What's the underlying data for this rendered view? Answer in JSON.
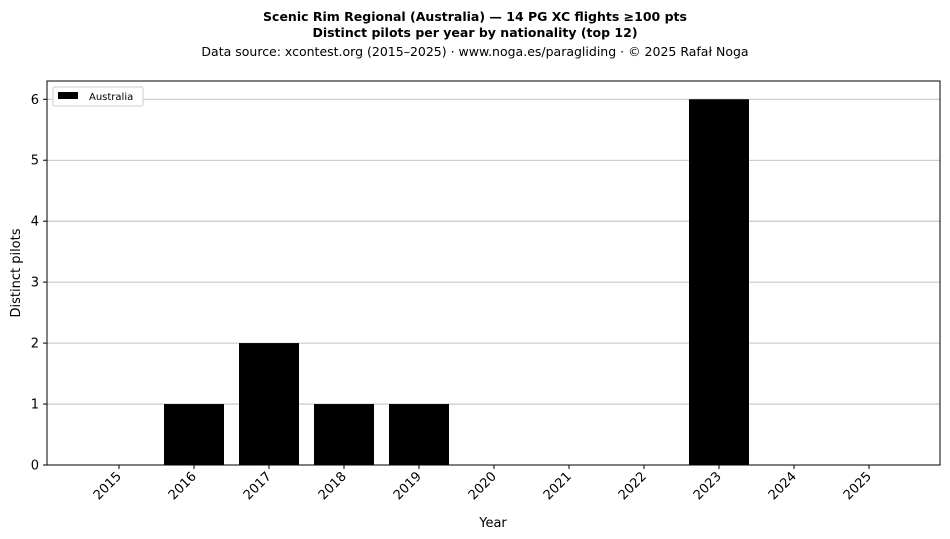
{
  "header": {
    "title_line1": "Scenic Rim Regional (Australia)  —  14 PG XC flights ≥100 pts",
    "title_line2": "Distinct pilots per year by nationality (top 12)",
    "subtitle": "Data source: xcontest.org (2015–2025)  ·  www.noga.es/paragliding  ·  © 2025 Rafał Noga"
  },
  "chart_data": {
    "type": "bar",
    "title": "Scenic Rim Regional (Australia)  —  14 PG XC flights ≥100 pts",
    "subtitle": "Distinct pilots per year by nationality (top 12)",
    "xlabel": "Year",
    "ylabel": "Distinct pilots",
    "categories": [
      "2015",
      "2016",
      "2017",
      "2018",
      "2019",
      "2020",
      "2021",
      "2022",
      "2023",
      "2024",
      "2025"
    ],
    "series": [
      {
        "name": "Australia",
        "color": "#000000",
        "values": [
          0,
          1,
          2,
          1,
          1,
          0,
          0,
          0,
          6,
          0,
          0
        ]
      }
    ],
    "ylim": [
      0,
      6.3
    ],
    "yticks": [
      0,
      1,
      2,
      3,
      4,
      5,
      6
    ],
    "grid": "y",
    "legend_position": "top-left"
  }
}
